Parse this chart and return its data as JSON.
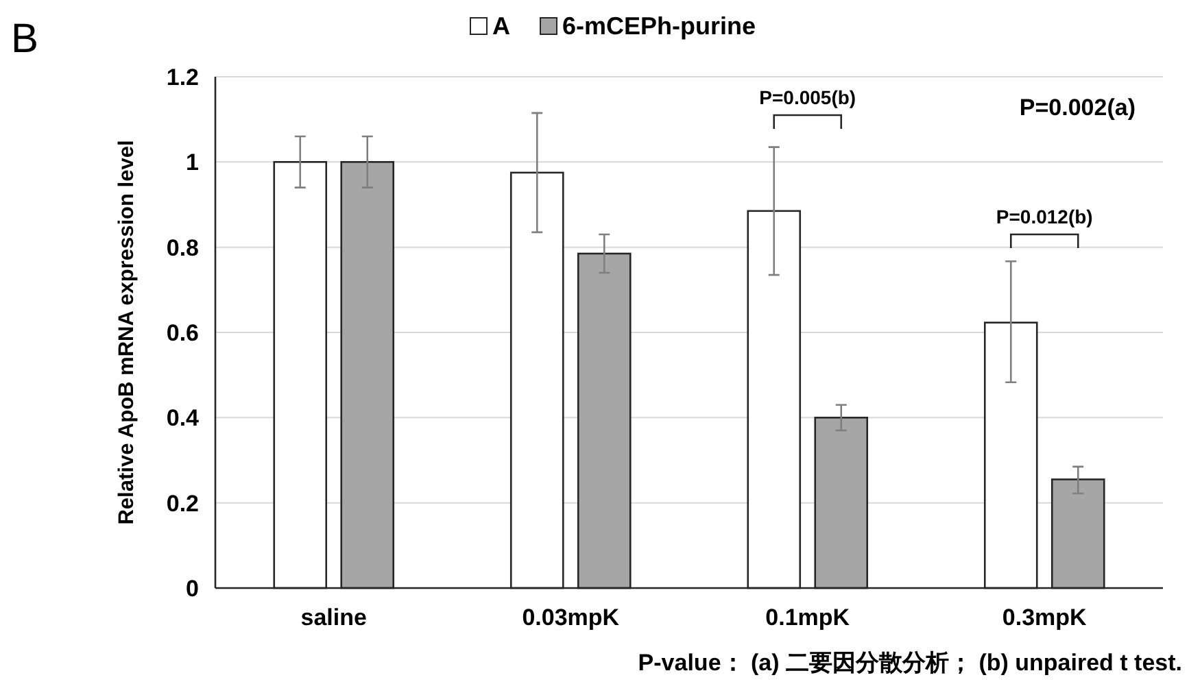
{
  "chart_data": {
    "type": "bar",
    "categories": [
      "saline",
      "0.03mpK",
      "0.1mpK",
      "0.3mpK"
    ],
    "series": [
      {
        "name": "A",
        "color": "#ffffff",
        "values": [
          1.0,
          0.975,
          0.885,
          0.623
        ],
        "errors": [
          [
            0.94,
            1.06
          ],
          [
            0.835,
            1.115
          ],
          [
            0.735,
            1.035
          ],
          [
            0.483,
            0.767
          ]
        ]
      },
      {
        "name": "6-mCEPh-purine",
        "color": "#a6a6a6",
        "values": [
          1.0,
          0.785,
          0.4,
          0.255
        ],
        "errors": [
          [
            0.94,
            1.06
          ],
          [
            0.74,
            0.83
          ],
          [
            0.37,
            0.43
          ],
          [
            0.222,
            0.285
          ]
        ]
      }
    ],
    "ylabel": "Relative ApoB mRNA expression level",
    "ylim": [
      0,
      1.2
    ],
    "yticks": [
      0,
      0.2,
      0.4,
      0.6,
      0.8,
      1,
      1.2
    ],
    "grid": "y",
    "legend": "top",
    "annotations": [
      "B",
      "P=0.005(b)",
      "P=0.002(a)",
      "P=0.012(b)",
      "P-value： (a) 二要因分散分析； (b) unpaired t test."
    ]
  }
}
